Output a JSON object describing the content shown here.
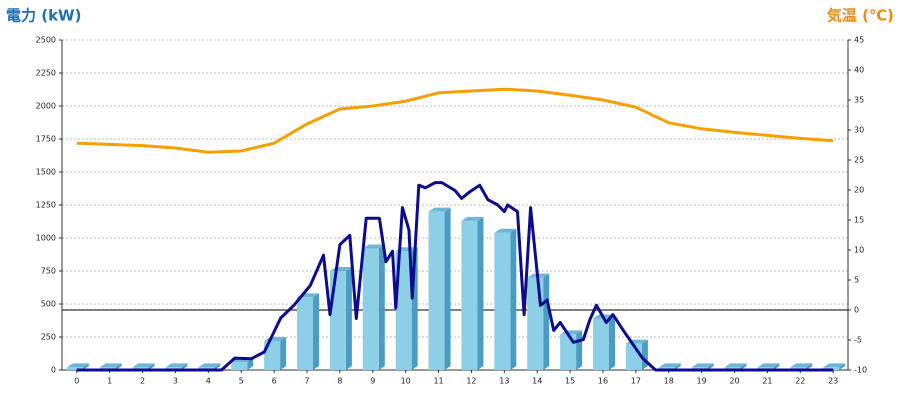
{
  "chart_data": {
    "type": "bar",
    "y_label": "電力 (kW)",
    "y2_label": "気温 (℃)",
    "x": [
      0,
      1,
      2,
      3,
      4,
      5,
      6,
      7,
      8,
      9,
      10,
      11,
      12,
      13,
      14,
      15,
      16,
      17,
      18,
      19,
      20,
      21,
      22,
      23
    ],
    "xlim": [
      -0.45,
      23.45
    ],
    "ylim": [
      0,
      2500
    ],
    "yticks": [
      0,
      250,
      500,
      750,
      1000,
      1250,
      1500,
      1750,
      2000,
      2250,
      2500
    ],
    "y2lim": [
      -10,
      45
    ],
    "y2ticks": [
      -10,
      -5,
      0,
      5,
      10,
      15,
      20,
      25,
      30,
      35,
      40,
      45
    ],
    "grid": true,
    "series": [
      {
        "type": "bar",
        "color": "#8ecfe8",
        "values": [
          20,
          20,
          20,
          20,
          20,
          60,
          220,
          550,
          750,
          920,
          900,
          1200,
          1130,
          1040,
          700,
          270,
          390,
          200,
          20,
          20,
          20,
          20,
          20,
          20
        ]
      },
      {
        "type": "line",
        "axis": "y2",
        "color": "#f5a000",
        "values": [
          27.8,
          27.6,
          27.4,
          27,
          26.3,
          26.5,
          27.8,
          31,
          33.5,
          34,
          34.8,
          36.2,
          36.5,
          36.8,
          36.5,
          35.8,
          35,
          33.8,
          31.2,
          30.2,
          29.6,
          29.1,
          28.6,
          28.2
        ]
      },
      {
        "type": "line",
        "color": "#0c0c8c",
        "x": [
          0,
          4.4,
          4.8,
          5.3,
          5.7,
          6.2,
          6.6,
          7.1,
          7.5,
          7.7,
          8.0,
          8.3,
          8.5,
          8.8,
          9.2,
          9.4,
          9.6,
          9.7,
          9.9,
          10.1,
          10.2,
          10.4,
          10.6,
          10.9,
          11.1,
          11.5,
          11.7,
          11.95,
          12.25,
          12.5,
          12.8,
          13.0,
          13.1,
          13.4,
          13.6,
          13.8,
          13.9,
          14.1,
          14.3,
          14.5,
          14.7,
          15.1,
          15.4,
          15.6,
          15.8,
          16.1,
          16.3,
          16.7,
          17.2,
          17.6,
          23
        ],
        "values": [
          0,
          0,
          90,
          85,
          136,
          394,
          490,
          640,
          870,
          420,
          950,
          1020,
          390,
          1150,
          1150,
          820,
          900,
          470,
          1230,
          1060,
          545,
          1400,
          1380,
          1420,
          1420,
          1360,
          1300,
          1350,
          1400,
          1290,
          1250,
          1200,
          1250,
          1200,
          420,
          1230,
          980,
          490,
          530,
          300,
          360,
          210,
          230,
          380,
          490,
          360,
          420,
          270,
          90,
          0,
          0
        ]
      }
    ]
  }
}
